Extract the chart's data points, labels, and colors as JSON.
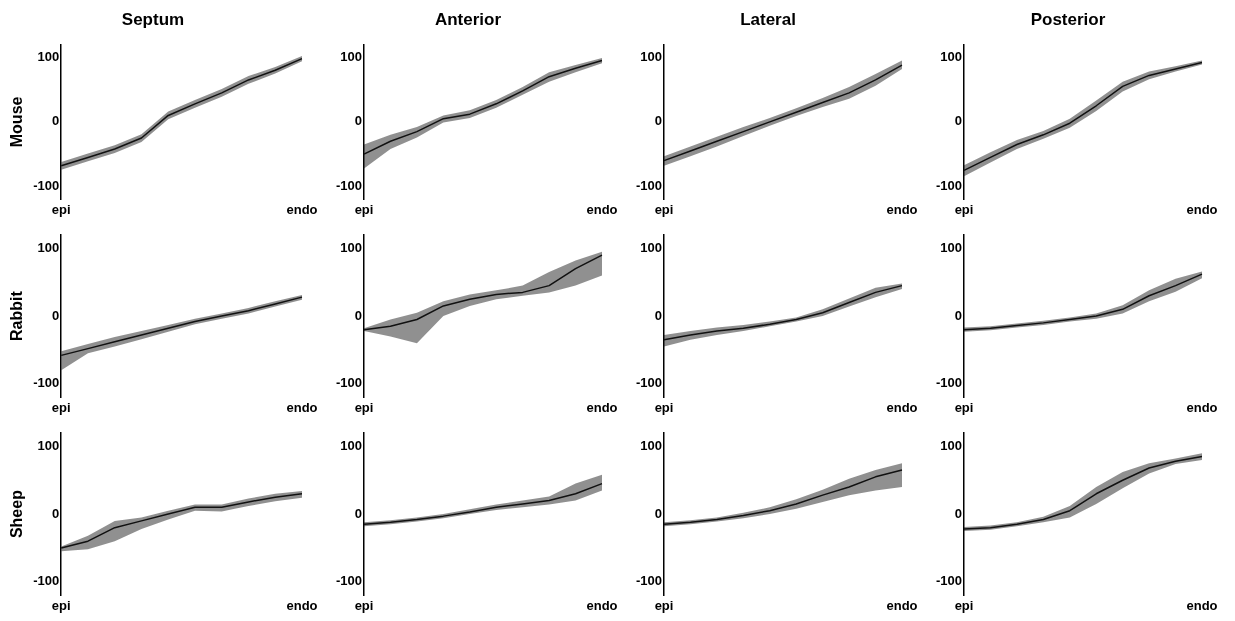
{
  "chart_data": [
    {
      "type": "line",
      "title": "Septum",
      "ylabel": "Mouse",
      "categories": [
        "epi",
        null,
        null,
        null,
        null,
        null,
        null,
        null,
        null,
        "endo"
      ],
      "ylim": [
        -120,
        120
      ],
      "yticks": [
        -100,
        0,
        100
      ],
      "grid": false,
      "legend": false,
      "marker": "none",
      "line_style": "solid",
      "series": [
        {
          "color": "#111111",
          "values": [
            -68,
            -55,
            -42,
            -25,
            10,
            28,
            45,
            65,
            80,
            98
          ],
          "lower": [
            -74,
            -61,
            -48,
            -31,
            4,
            22,
            39,
            59,
            75,
            94
          ],
          "upper": [
            -62,
            -49,
            -36,
            -19,
            16,
            34,
            51,
            71,
            85,
            102
          ]
        }
      ]
    },
    {
      "type": "line",
      "title": "Anterior",
      "categories": [
        "epi",
        null,
        null,
        null,
        null,
        null,
        null,
        null,
        null,
        "endo"
      ],
      "ylim": [
        -120,
        120
      ],
      "yticks": [
        -100,
        0,
        100
      ],
      "grid": false,
      "legend": false,
      "marker": "none",
      "line_style": "solid",
      "series": [
        {
          "color": "#111111",
          "values": [
            -50,
            -30,
            -15,
            5,
            12,
            28,
            48,
            70,
            83,
            95
          ],
          "lower": [
            -72,
            -42,
            -24,
            -1,
            6,
            22,
            42,
            62,
            77,
            91
          ],
          "upper": [
            -35,
            -20,
            -8,
            10,
            18,
            34,
            54,
            77,
            88,
            99
          ]
        }
      ]
    },
    {
      "type": "line",
      "title": "Lateral",
      "categories": [
        "epi",
        null,
        null,
        null,
        null,
        null,
        null,
        null,
        null,
        "endo"
      ],
      "ylim": [
        -120,
        120
      ],
      "yticks": [
        -100,
        0,
        100
      ],
      "grid": false,
      "legend": false,
      "marker": "none",
      "line_style": "solid",
      "series": [
        {
          "color": "#111111",
          "values": [
            -60,
            -45,
            -30,
            -15,
            0,
            15,
            30,
            45,
            65,
            88
          ],
          "lower": [
            -68,
            -53,
            -38,
            -22,
            -6,
            9,
            23,
            36,
            56,
            82
          ],
          "upper": [
            -53,
            -38,
            -23,
            -8,
            6,
            21,
            37,
            54,
            74,
            95
          ]
        }
      ]
    },
    {
      "type": "line",
      "title": "Posterior",
      "categories": [
        "epi",
        null,
        null,
        null,
        null,
        null,
        null,
        null,
        null,
        "endo"
      ],
      "ylim": [
        -120,
        120
      ],
      "yticks": [
        -100,
        0,
        100
      ],
      "grid": false,
      "legend": false,
      "marker": "none",
      "line_style": "solid",
      "series": [
        {
          "color": "#111111",
          "values": [
            -75,
            -55,
            -35,
            -20,
            -2,
            25,
            55,
            72,
            82,
            92
          ],
          "lower": [
            -84,
            -63,
            -42,
            -26,
            -9,
            17,
            47,
            66,
            78,
            89
          ],
          "upper": [
            -67,
            -47,
            -28,
            -14,
            5,
            33,
            62,
            78,
            86,
            95
          ]
        }
      ]
    },
    {
      "type": "line",
      "ylabel": "Rabbit",
      "categories": [
        "epi",
        null,
        null,
        null,
        null,
        null,
        null,
        null,
        null,
        "endo"
      ],
      "ylim": [
        -120,
        120
      ],
      "yticks": [
        -100,
        0,
        100
      ],
      "grid": false,
      "legend": false,
      "marker": "none",
      "line_style": "solid",
      "series": [
        {
          "color": "#111111",
          "values": [
            -58,
            -48,
            -38,
            -28,
            -18,
            -8,
            0,
            8,
            18,
            28
          ],
          "lower": [
            -80,
            -55,
            -45,
            -34,
            -23,
            -12,
            -4,
            4,
            14,
            24
          ],
          "upper": [
            -52,
            -41,
            -31,
            -22,
            -13,
            -4,
            4,
            12,
            22,
            31
          ]
        }
      ]
    },
    {
      "type": "line",
      "categories": [
        "epi",
        null,
        null,
        null,
        null,
        null,
        null,
        null,
        null,
        "endo"
      ],
      "ylim": [
        -120,
        120
      ],
      "yticks": [
        -100,
        0,
        100
      ],
      "grid": false,
      "legend": false,
      "marker": "none",
      "line_style": "solid",
      "series": [
        {
          "color": "#111111",
          "values": [
            -20,
            -15,
            -5,
            15,
            25,
            32,
            35,
            45,
            70,
            90
          ],
          "lower": [
            -22,
            -30,
            -40,
            0,
            15,
            25,
            30,
            35,
            45,
            60
          ],
          "upper": [
            -18,
            -5,
            5,
            22,
            32,
            38,
            45,
            65,
            82,
            95
          ]
        }
      ]
    },
    {
      "type": "line",
      "categories": [
        "epi",
        null,
        null,
        null,
        null,
        null,
        null,
        null,
        null,
        "endo"
      ],
      "ylim": [
        -120,
        120
      ],
      "yticks": [
        -100,
        0,
        100
      ],
      "grid": false,
      "legend": false,
      "marker": "none",
      "line_style": "solid",
      "series": [
        {
          "color": "#111111",
          "values": [
            -35,
            -28,
            -22,
            -18,
            -12,
            -5,
            5,
            20,
            35,
            45
          ],
          "lower": [
            -45,
            -35,
            -28,
            -22,
            -15,
            -8,
            0,
            14,
            28,
            40
          ],
          "upper": [
            -28,
            -22,
            -17,
            -13,
            -8,
            -2,
            10,
            26,
            42,
            48
          ]
        }
      ]
    },
    {
      "type": "line",
      "categories": [
        "epi",
        null,
        null,
        null,
        null,
        null,
        null,
        null,
        null,
        "endo"
      ],
      "ylim": [
        -120,
        120
      ],
      "yticks": [
        -100,
        0,
        100
      ],
      "grid": false,
      "legend": false,
      "marker": "none",
      "line_style": "solid",
      "series": [
        {
          "color": "#111111",
          "values": [
            -20,
            -18,
            -14,
            -10,
            -5,
            0,
            10,
            30,
            45,
            62
          ],
          "lower": [
            -23,
            -21,
            -17,
            -13,
            -8,
            -4,
            4,
            22,
            36,
            56
          ],
          "upper": [
            -17,
            -15,
            -11,
            -7,
            -2,
            4,
            16,
            38,
            55,
            66
          ]
        }
      ]
    },
    {
      "type": "line",
      "ylabel": "Sheep",
      "categories": [
        "epi",
        null,
        null,
        null,
        null,
        null,
        null,
        null,
        null,
        "endo"
      ],
      "ylim": [
        -120,
        120
      ],
      "yticks": [
        -100,
        0,
        100
      ],
      "grid": false,
      "legend": false,
      "marker": "none",
      "line_style": "solid",
      "series": [
        {
          "color": "#111111",
          "values": [
            -50,
            -40,
            -20,
            -10,
            0,
            10,
            10,
            18,
            25,
            30
          ],
          "lower": [
            -55,
            -52,
            -40,
            -22,
            -8,
            5,
            4,
            12,
            19,
            24
          ],
          "upper": [
            -48,
            -32,
            -10,
            -5,
            5,
            14,
            14,
            23,
            30,
            34
          ]
        }
      ]
    },
    {
      "type": "line",
      "categories": [
        "epi",
        null,
        null,
        null,
        null,
        null,
        null,
        null,
        null,
        "endo"
      ],
      "ylim": [
        -120,
        120
      ],
      "yticks": [
        -100,
        0,
        100
      ],
      "grid": false,
      "legend": false,
      "marker": "none",
      "line_style": "solid",
      "series": [
        {
          "color": "#111111",
          "values": [
            -15,
            -12,
            -8,
            -3,
            3,
            10,
            15,
            20,
            30,
            45
          ],
          "lower": [
            -18,
            -15,
            -11,
            -6,
            0,
            6,
            10,
            14,
            20,
            35
          ],
          "upper": [
            -12,
            -9,
            -5,
            0,
            7,
            14,
            20,
            26,
            45,
            58
          ]
        }
      ]
    },
    {
      "type": "line",
      "categories": [
        "epi",
        null,
        null,
        null,
        null,
        null,
        null,
        null,
        null,
        "endo"
      ],
      "ylim": [
        -120,
        120
      ],
      "yticks": [
        -100,
        0,
        100
      ],
      "grid": false,
      "legend": false,
      "marker": "none",
      "line_style": "solid",
      "series": [
        {
          "color": "#111111",
          "values": [
            -15,
            -12,
            -8,
            -2,
            5,
            15,
            28,
            40,
            55,
            65
          ],
          "lower": [
            -18,
            -15,
            -11,
            -6,
            0,
            8,
            18,
            28,
            35,
            40
          ],
          "upper": [
            -12,
            -9,
            -5,
            2,
            10,
            22,
            36,
            52,
            65,
            75
          ]
        }
      ]
    },
    {
      "type": "line",
      "categories": [
        "epi",
        null,
        null,
        null,
        null,
        null,
        null,
        null,
        null,
        "endo"
      ],
      "ylim": [
        -120,
        120
      ],
      "yticks": [
        -100,
        0,
        100
      ],
      "grid": false,
      "legend": false,
      "marker": "none",
      "line_style": "solid",
      "series": [
        {
          "color": "#111111",
          "values": [
            -22,
            -20,
            -15,
            -8,
            5,
            30,
            50,
            68,
            78,
            85
          ],
          "lower": [
            -25,
            -23,
            -18,
            -12,
            -5,
            15,
            38,
            60,
            74,
            80
          ],
          "upper": [
            -19,
            -17,
            -12,
            -4,
            12,
            40,
            62,
            75,
            82,
            90
          ]
        }
      ]
    }
  ]
}
